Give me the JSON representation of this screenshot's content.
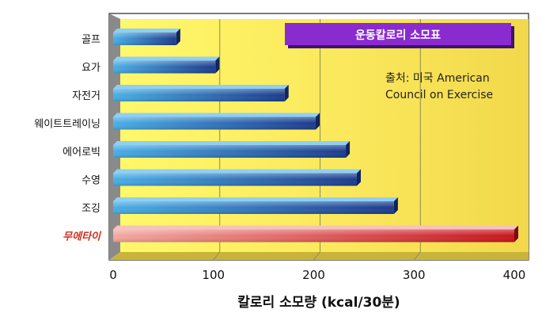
{
  "chart_data": {
    "type": "bar",
    "orientation": "horizontal",
    "title": "운동칼로리 소모표",
    "source_note_lines": [
      "출처: 미국 American",
      "Council on Exercise"
    ],
    "xlabel": "칼로리 소모량 (kcal/30분)",
    "ylabel": "",
    "xlim": [
      0,
      400
    ],
    "x_ticks": [
      "0",
      "100",
      "200",
      "300",
      "400"
    ],
    "grid": true,
    "categories": [
      "골프",
      "요가",
      "자전거",
      "웨이트트레이닝",
      "에어로빅",
      "수영",
      "조깅",
      "무에타이"
    ],
    "values": [
      63,
      102,
      171,
      202,
      232,
      243,
      280,
      400
    ],
    "highlight_category": "무에타이",
    "colors": {
      "bar_light": "#49aee6",
      "bar_dark": "#1c3b8c",
      "highlight_light": "#f3a8a0",
      "highlight_dark": "#c8141c",
      "highlight_label": "#d2301f",
      "title_box": "#8a2bd0",
      "background_light": "#fff86a",
      "background_dark": "#f2d84b"
    }
  }
}
